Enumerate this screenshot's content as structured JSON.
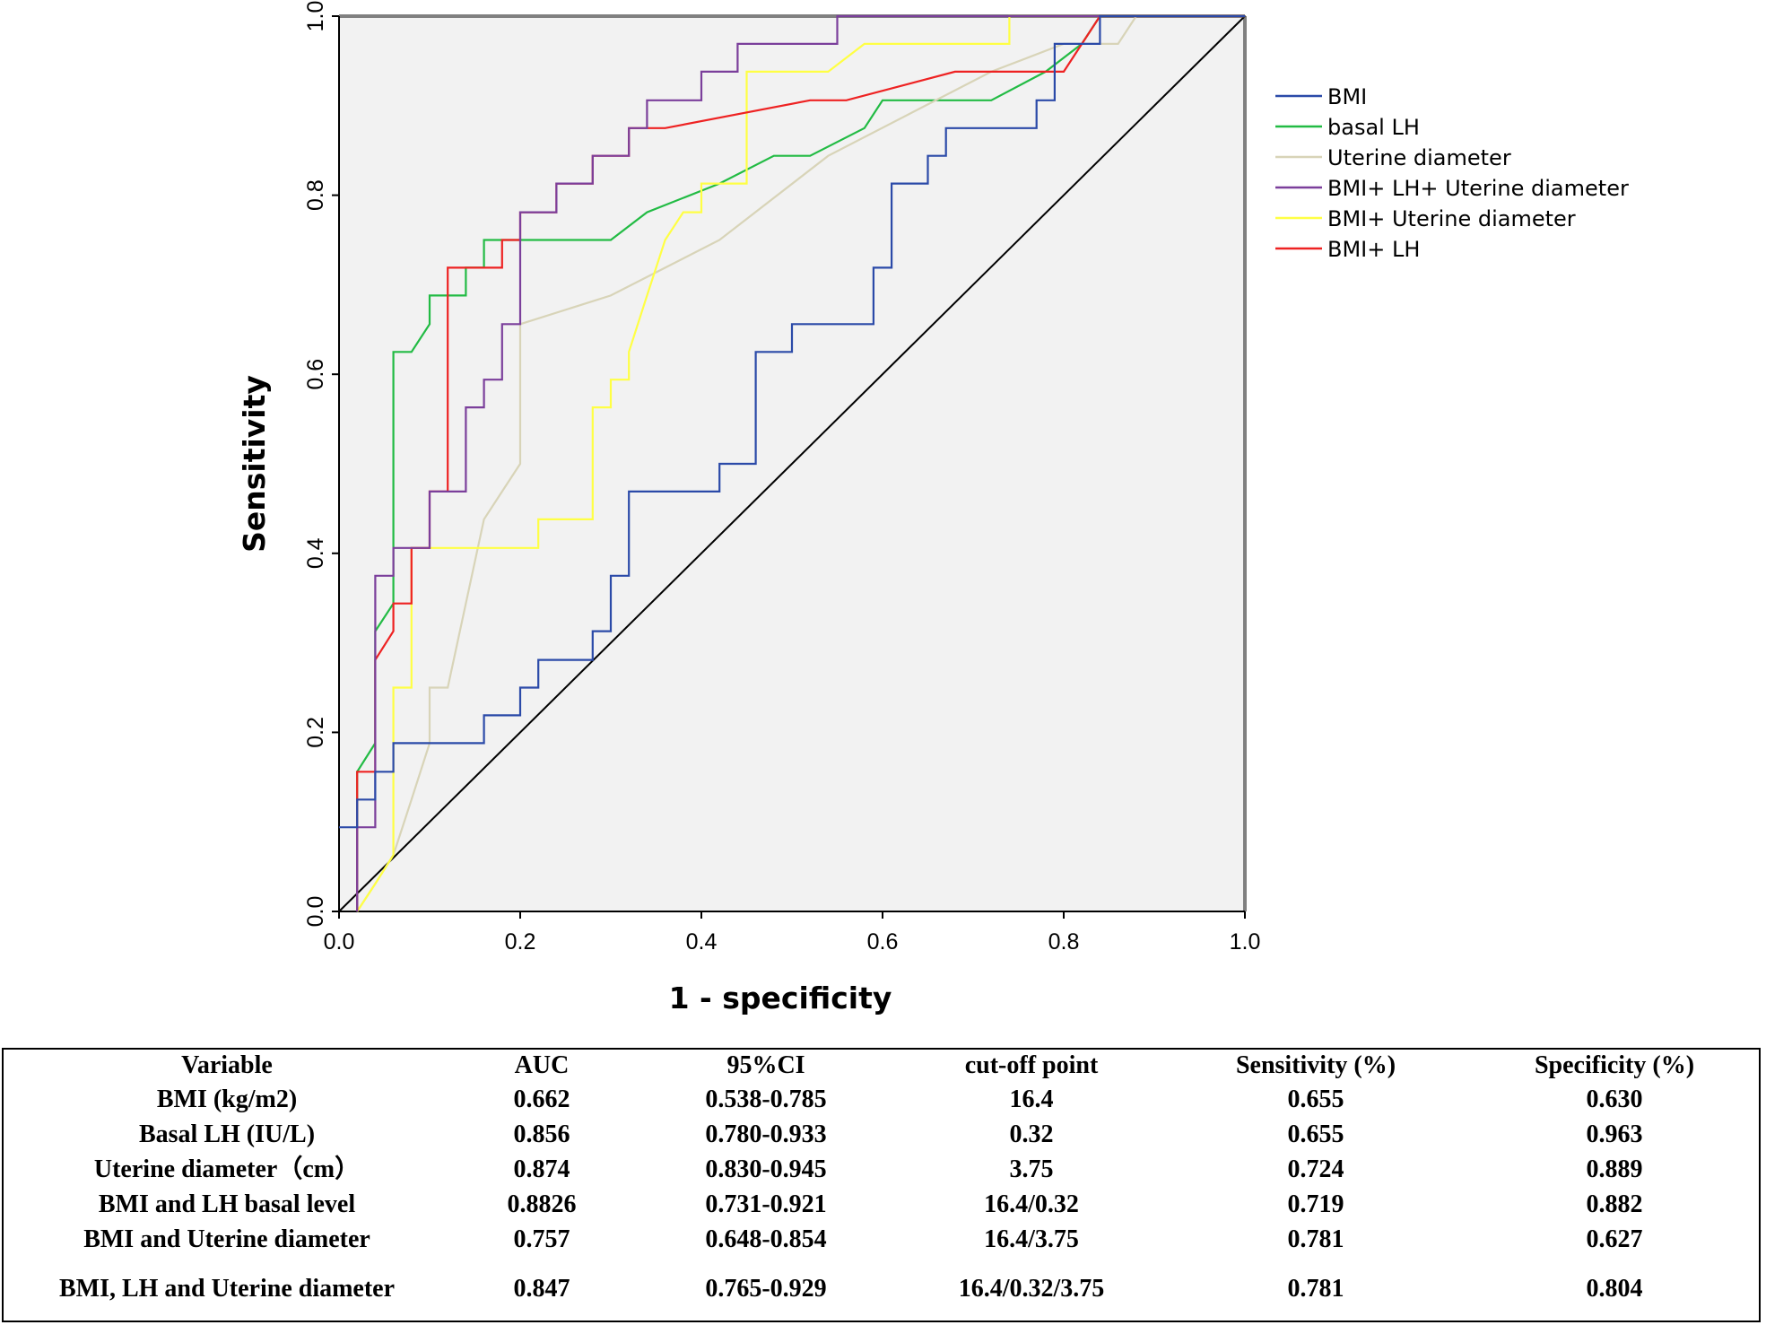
{
  "chart_data": {
    "type": "line",
    "xlabel": "1 - specificity",
    "ylabel": "Sensitivity",
    "xlim": [
      0,
      1
    ],
    "ylim": [
      0,
      1
    ],
    "x_ticks": [
      "0.0",
      "0.2",
      "0.4",
      "0.6",
      "0.8",
      "1.0"
    ],
    "y_ticks": [
      "0.0",
      "0.2",
      "0.4",
      "0.6",
      "0.8",
      "1.0"
    ],
    "grid": false,
    "legend_position": "right",
    "reference_line": {
      "x": [
        0,
        1
      ],
      "y": [
        0,
        1
      ],
      "color": "#000000"
    },
    "series": [
      {
        "name": "BMI",
        "color": "#2b4aa8",
        "x": [
          0,
          0.02,
          0.02,
          0.04,
          0.04,
          0.06,
          0.06,
          0.16,
          0.16,
          0.2,
          0.2,
          0.22,
          0.22,
          0.28,
          0.28,
          0.3,
          0.3,
          0.32,
          0.32,
          0.42,
          0.42,
          0.46,
          0.46,
          0.5,
          0.5,
          0.52,
          0.52,
          0.59,
          0.59,
          0.61,
          0.61,
          0.65,
          0.65,
          0.67,
          0.67,
          0.77,
          0.77,
          0.79,
          0.79,
          0.84,
          0.84,
          1.0
        ],
        "y": [
          0.094,
          0.094,
          0.125,
          0.125,
          0.156,
          0.156,
          0.188,
          0.188,
          0.219,
          0.219,
          0.25,
          0.25,
          0.281,
          0.281,
          0.313,
          0.313,
          0.375,
          0.375,
          0.469,
          0.469,
          0.5,
          0.5,
          0.625,
          0.625,
          0.656,
          0.656,
          0.656,
          0.656,
          0.719,
          0.719,
          0.813,
          0.813,
          0.844,
          0.844,
          0.875,
          0.875,
          0.906,
          0.906,
          0.969,
          0.969,
          1.0,
          1.0
        ]
      },
      {
        "name": "basal LH",
        "color": "#22bb44",
        "x": [
          0.02,
          0.02,
          0.04,
          0.04,
          0.06,
          0.06,
          0.08,
          0.1,
          0.1,
          0.14,
          0.14,
          0.16,
          0.16,
          0.2,
          0.3,
          0.34,
          0.42,
          0.48,
          0.52,
          0.58,
          0.6,
          0.72,
          0.78,
          0.82,
          0.84,
          1.0
        ],
        "y": [
          0,
          0.156,
          0.188,
          0.313,
          0.344,
          0.625,
          0.625,
          0.656,
          0.688,
          0.688,
          0.719,
          0.719,
          0.75,
          0.75,
          0.75,
          0.781,
          0.813,
          0.844,
          0.844,
          0.875,
          0.906,
          0.906,
          0.938,
          0.969,
          1.0,
          1.0
        ]
      },
      {
        "name": "Uterine diameter",
        "color": "#d8d4b8",
        "x": [
          0.02,
          0.04,
          0.06,
          0.08,
          0.1,
          0.1,
          0.12,
          0.14,
          0.16,
          0.18,
          0.2,
          0.2,
          0.3,
          0.42,
          0.54,
          0.72,
          0.8,
          0.86,
          0.88,
          1.0
        ],
        "y": [
          0,
          0.031,
          0.063,
          0.125,
          0.188,
          0.25,
          0.25,
          0.344,
          0.438,
          0.469,
          0.5,
          0.656,
          0.688,
          0.75,
          0.844,
          0.938,
          0.969,
          0.969,
          1.0,
          1.0
        ]
      },
      {
        "name": "BMI+ LH+ Uterine diameter",
        "color": "#7b3f9b",
        "x": [
          0.02,
          0.02,
          0.04,
          0.04,
          0.05,
          0.05,
          0.06,
          0.06,
          0.1,
          0.1,
          0.12,
          0.12,
          0.14,
          0.14,
          0.16,
          0.16,
          0.18,
          0.18,
          0.2,
          0.2,
          0.22,
          0.22,
          0.24,
          0.24,
          0.28,
          0.28,
          0.3,
          0.3,
          0.32,
          0.32,
          0.34,
          0.34,
          0.4,
          0.4,
          0.42,
          0.42,
          0.44,
          0.44,
          0.55,
          0.55,
          1.0
        ],
        "y": [
          0,
          0.094,
          0.094,
          0.375,
          0.375,
          0.375,
          0.375,
          0.406,
          0.406,
          0.469,
          0.469,
          0.469,
          0.469,
          0.563,
          0.563,
          0.594,
          0.594,
          0.656,
          0.656,
          0.781,
          0.781,
          0.781,
          0.781,
          0.813,
          0.813,
          0.844,
          0.844,
          0.844,
          0.844,
          0.875,
          0.875,
          0.906,
          0.906,
          0.938,
          0.938,
          0.938,
          0.938,
          0.969,
          0.969,
          1.0,
          1.0
        ]
      },
      {
        "name": "BMI+ Uterine diameter",
        "color": "#ffff44",
        "x": [
          0.02,
          0.04,
          0.06,
          0.06,
          0.08,
          0.08,
          0.1,
          0.22,
          0.22,
          0.28,
          0.28,
          0.3,
          0.3,
          0.32,
          0.32,
          0.34,
          0.36,
          0.38,
          0.4,
          0.4,
          0.45,
          0.45,
          0.46,
          0.54,
          0.58,
          0.74,
          0.74,
          1.0
        ],
        "y": [
          0,
          0.031,
          0.063,
          0.25,
          0.25,
          0.406,
          0.406,
          0.406,
          0.438,
          0.438,
          0.563,
          0.563,
          0.594,
          0.594,
          0.625,
          0.688,
          0.75,
          0.781,
          0.781,
          0.813,
          0.813,
          0.938,
          0.938,
          0.938,
          0.969,
          0.969,
          1.0,
          1.0
        ]
      },
      {
        "name": "BMI+ LH",
        "color": "#ee2222",
        "x": [
          0.02,
          0.02,
          0.04,
          0.04,
          0.06,
          0.06,
          0.08,
          0.08,
          0.1,
          0.1,
          0.12,
          0.12,
          0.18,
          0.18,
          0.2,
          0.2,
          0.24,
          0.24,
          0.28,
          0.28,
          0.32,
          0.32,
          0.36,
          0.52,
          0.56,
          0.68,
          0.8,
          0.84,
          1.0
        ],
        "y": [
          0,
          0.156,
          0.156,
          0.281,
          0.313,
          0.344,
          0.344,
          0.406,
          0.406,
          0.469,
          0.469,
          0.719,
          0.719,
          0.75,
          0.75,
          0.781,
          0.781,
          0.813,
          0.813,
          0.844,
          0.844,
          0.875,
          0.875,
          0.906,
          0.906,
          0.938,
          0.938,
          1.0,
          1.0
        ]
      }
    ]
  },
  "table": {
    "columns": [
      "Variable",
      "AUC",
      "95%CI",
      "cut-off point",
      "Sensitivity (%)",
      "Specificity (%)"
    ],
    "rows": [
      [
        "BMI (kg/m2)",
        "0.662",
        "0.538-0.785",
        "16.4",
        "0.655",
        "0.630"
      ],
      [
        "Basal LH (IU/L)",
        "0.856",
        "0.780-0.933",
        "0.32",
        "0.655",
        "0.963"
      ],
      [
        "Uterine diameter（cm）",
        "0.874",
        "0.830-0.945",
        "3.75",
        "0.724",
        "0.889"
      ],
      [
        "BMI and LH basal level",
        "0.8826",
        "0.731-0.921",
        "16.4/0.32",
        "0.719",
        "0.882"
      ],
      [
        "BMI and Uterine diameter",
        "0.757",
        "0.648-0.854",
        "16.4/3.75",
        "0.781",
        "0.627"
      ],
      [
        "BMI, LH and Uterine diameter",
        "0.847",
        "0.765-0.929",
        "16.4/0.32/3.75",
        "0.781",
        "0.804"
      ]
    ]
  }
}
